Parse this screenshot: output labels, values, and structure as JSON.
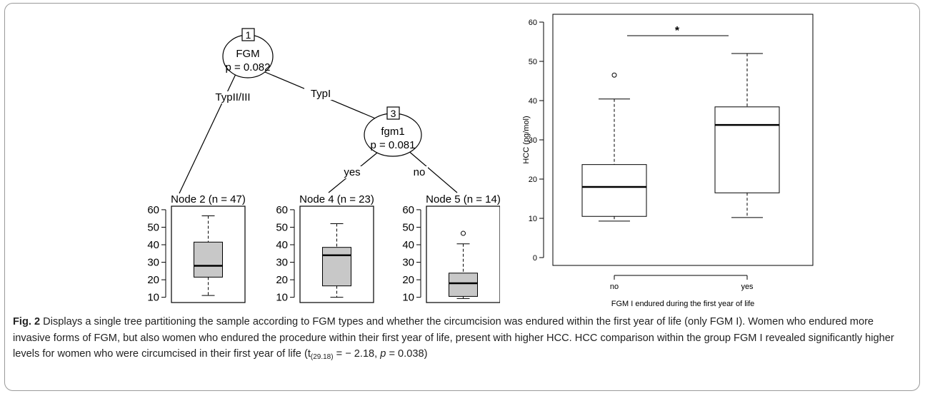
{
  "figure": {
    "caption_label": "Fig. 2",
    "caption_text": " Displays a single tree partitioning the sample according to FGM types and whether the circumcision was endured within the first year of life (only FGM I). Women who endured more invasive forms of FGM, but also women who endured the procedure within their first year of life, present with higher HCC. HCC comparison within the group FGM I revealed significantly higher levels for women who were circumcised in their first year of life (t",
    "caption_sub": "(29.18)",
    "caption_stat": " = − 2.18, ",
    "caption_p": "p",
    "caption_end": " = 0.038)"
  },
  "tree": {
    "nodes": [
      {
        "id": "1",
        "variable": "FGM",
        "p": "p = 0.082"
      },
      {
        "id": "3",
        "variable": "fgm1",
        "p": "p = 0.081"
      }
    ],
    "edges": [
      {
        "label": "TypII/III"
      },
      {
        "label": "TypI"
      },
      {
        "label": "yes"
      },
      {
        "label": "no"
      }
    ],
    "terminal_nodes": [
      {
        "title": "Node 2 (n = 47)",
        "min": 11,
        "q1": 21.5,
        "median": 28,
        "q3": 41.5,
        "max": 56.5,
        "outliers": []
      },
      {
        "title": "Node 4 (n = 23)",
        "min": 10,
        "q1": 16.5,
        "median": 34,
        "q3": 38.5,
        "max": 52,
        "outliers": []
      },
      {
        "title": "Node 5 (n = 14)",
        "min": 9.3,
        "q1": 10.5,
        "median": 18,
        "q3": 23.8,
        "max": 40.5,
        "outliers": [
          46.5
        ]
      }
    ],
    "yticks": [
      10,
      20,
      30,
      40,
      50,
      60
    ],
    "ylim": [
      7,
      62
    ],
    "box_fill": "#c8c8c8"
  },
  "chart_data": [
    {
      "type": "box",
      "title": "",
      "xlabel": "FGM I endured during the first year of life",
      "ylabel": "HCC (pg/mol)",
      "ylim": [
        -2,
        62
      ],
      "yticks": [
        0,
        10,
        20,
        30,
        40,
        50,
        60
      ],
      "categories": [
        "no",
        "yes"
      ],
      "boxes": [
        {
          "name": "no",
          "min": 9.3,
          "q1": 10.5,
          "median": 18,
          "q3": 23.7,
          "max": 40.4,
          "outliers": [
            46.5
          ]
        },
        {
          "name": "yes",
          "min": 10.2,
          "q1": 16.5,
          "median": 33.8,
          "q3": 38.4,
          "max": 52,
          "outliers": []
        }
      ],
      "annotation": "*",
      "box_fill": "#ffffff"
    }
  ]
}
